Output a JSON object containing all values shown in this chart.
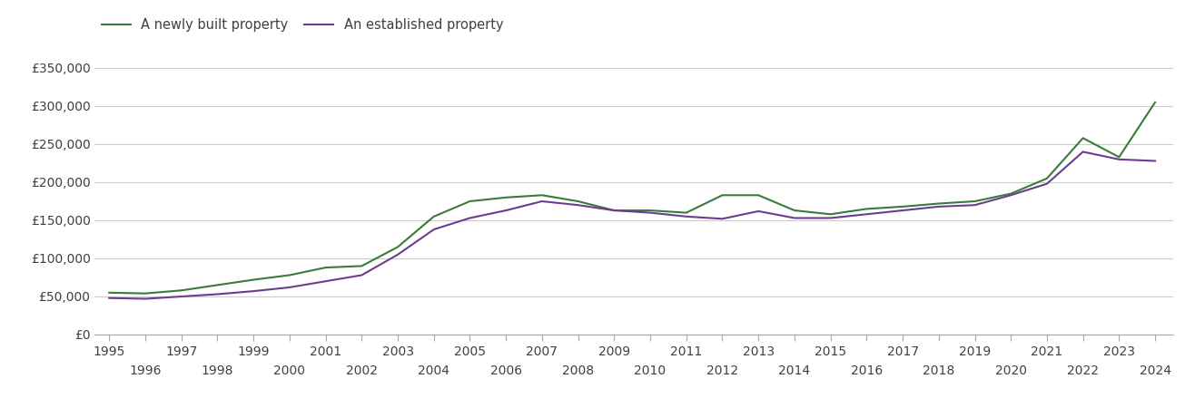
{
  "newly_built": {
    "years": [
      1995,
      1996,
      1997,
      1998,
      1999,
      2000,
      2001,
      2002,
      2003,
      2004,
      2005,
      2006,
      2007,
      2008,
      2009,
      2010,
      2011,
      2012,
      2013,
      2014,
      2015,
      2016,
      2017,
      2018,
      2019,
      2020,
      2021,
      2022,
      2023,
      2024
    ],
    "values": [
      55000,
      54000,
      58000,
      65000,
      72000,
      78000,
      88000,
      90000,
      115000,
      155000,
      175000,
      180000,
      183000,
      175000,
      163000,
      163000,
      160000,
      183000,
      183000,
      163000,
      158000,
      165000,
      168000,
      172000,
      175000,
      185000,
      205000,
      258000,
      233000,
      305000
    ]
  },
  "established": {
    "years": [
      1995,
      1996,
      1997,
      1998,
      1999,
      2000,
      2001,
      2002,
      2003,
      2004,
      2005,
      2006,
      2007,
      2008,
      2009,
      2010,
      2011,
      2012,
      2013,
      2014,
      2015,
      2016,
      2017,
      2018,
      2019,
      2020,
      2021,
      2022,
      2023,
      2024
    ],
    "values": [
      48000,
      47000,
      50000,
      53000,
      57000,
      62000,
      70000,
      78000,
      105000,
      138000,
      153000,
      163000,
      175000,
      170000,
      163000,
      160000,
      155000,
      152000,
      162000,
      153000,
      153000,
      158000,
      163000,
      168000,
      170000,
      183000,
      198000,
      240000,
      230000,
      228000
    ]
  },
  "newly_color": "#3a7a3a",
  "established_color": "#6a3d8f",
  "line_width": 1.5,
  "ylim": [
    0,
    375000
  ],
  "ytick_values": [
    0,
    50000,
    100000,
    150000,
    200000,
    250000,
    300000,
    350000
  ],
  "ytick_labels": [
    "£0",
    "£50,000",
    "£100,000",
    "£150,000",
    "£200,000",
    "£250,000",
    "£300,000",
    "£350,000"
  ],
  "grid_color": "#cccccc",
  "background_color": "#ffffff",
  "legend_labels": [
    "A newly built property",
    "An established property"
  ],
  "font_color": "#404040",
  "tick_fontsize": 10,
  "legend_fontsize": 10.5,
  "xlim_left": 1994.6,
  "xlim_right": 2024.5
}
